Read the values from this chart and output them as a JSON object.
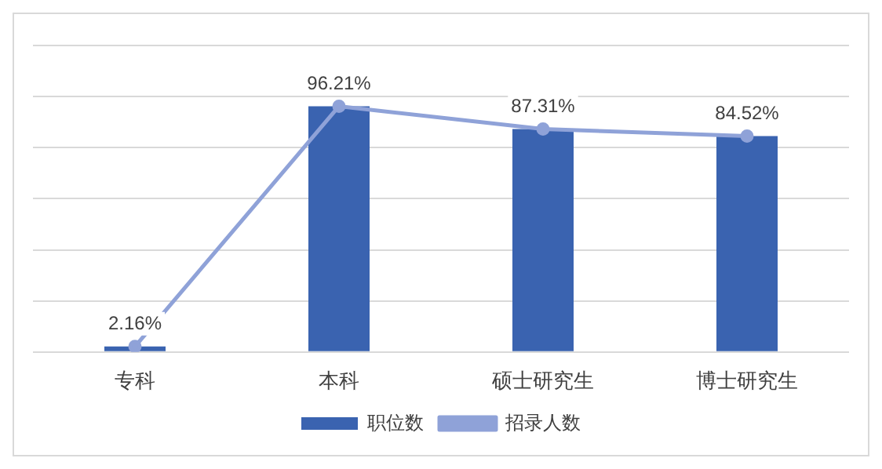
{
  "chart_data": {
    "type": "bar",
    "categories": [
      "专科",
      "本科",
      "硕士研究生",
      "博士研究生"
    ],
    "series": [
      {
        "name": "职位数",
        "color": "#3a63b0",
        "values": [
          2.16,
          96.21,
          87.31,
          84.52
        ]
      },
      {
        "name": "招录人数",
        "type": "line",
        "color": "#8fa2d8",
        "values": [
          2.16,
          96.21,
          87.31,
          84.52
        ],
        "value_labels": [
          "2.16%",
          "96.21%",
          "87.31%",
          "84.52%"
        ]
      }
    ],
    "ylim": [
      0,
      120
    ],
    "yticks": [
      {
        "value": 0,
        "label": null
      },
      {
        "value": 20,
        "label": null
      },
      {
        "value": 40,
        "label": null
      },
      {
        "value": 60,
        "label": null
      },
      {
        "value": 80,
        "label": null
      },
      {
        "value": 100,
        "label": null
      },
      {
        "value": 120,
        "label": null
      }
    ],
    "grid": "y",
    "tick_labels": "x",
    "legend": "bottom",
    "marker": "circle",
    "line_style": "solid"
  }
}
